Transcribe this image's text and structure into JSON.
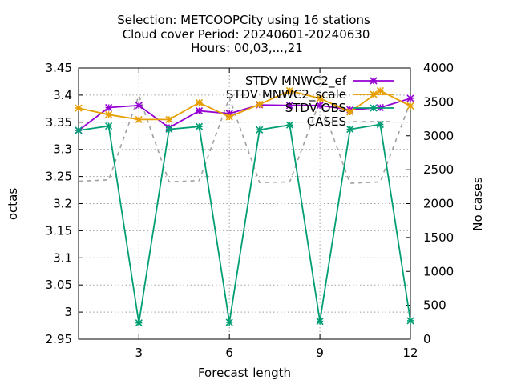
{
  "chart_data": {
    "type": "line",
    "title_lines": [
      "Selection: METCOOPCity using    16 stations",
      "Cloud cover   Period: 20240601-20240630",
      "Hours: 00,03,...,21"
    ],
    "xlabel": "Forecast length",
    "ylabel": "octas",
    "y2label": "No cases",
    "xlim": [
      1,
      12
    ],
    "xticks": [
      3,
      6,
      9,
      12
    ],
    "ylim": [
      2.95,
      3.45
    ],
    "yticks": [
      "2.95",
      "3",
      "3.05",
      "3.1",
      "3.15",
      "3.2",
      "3.25",
      "3.3",
      "3.35",
      "3.4",
      "3.45"
    ],
    "y2lim": [
      0,
      4000
    ],
    "y2ticks": [
      "0",
      "500",
      "1000",
      "1500",
      "2000",
      "2500",
      "3000",
      "3500",
      "4000"
    ],
    "grid": "dotted vertical at x ticks, dotted horizontal at y ticks",
    "legend_position": "top-right",
    "x": [
      1,
      2,
      3,
      4,
      5,
      6,
      7,
      8,
      9,
      10,
      11,
      12
    ],
    "series": [
      {
        "name": "STDV MNWC2_ef",
        "axis": "y",
        "color": "#9400d3",
        "marker": "star",
        "values": [
          3.335,
          3.377,
          3.381,
          3.34,
          3.371,
          3.366,
          3.382,
          3.381,
          3.381,
          3.373,
          3.377,
          3.394
        ]
      },
      {
        "name": "STDV MNWC2_scale",
        "axis": "y",
        "color": "#e69f00",
        "marker": "star",
        "values": [
          3.376,
          3.364,
          3.355,
          3.355,
          3.386,
          3.36,
          3.383,
          3.408,
          3.394,
          3.369,
          3.408,
          3.38
        ]
      },
      {
        "name": "STDV OBS",
        "axis": "y",
        "color": "#009e73",
        "marker": "star",
        "values": [
          3.335,
          3.343,
          2.98,
          3.337,
          3.342,
          2.981,
          3.336,
          3.345,
          2.983,
          3.337,
          3.346,
          2.984
        ]
      },
      {
        "name": "CASES",
        "axis": "y2",
        "color": "#a0a0a0",
        "marker": "none",
        "dashed": true,
        "values": [
          2330,
          2350,
          3590,
          2320,
          2340,
          3560,
          2310,
          2320,
          3520,
          2300,
          2320,
          3500
        ]
      }
    ]
  }
}
